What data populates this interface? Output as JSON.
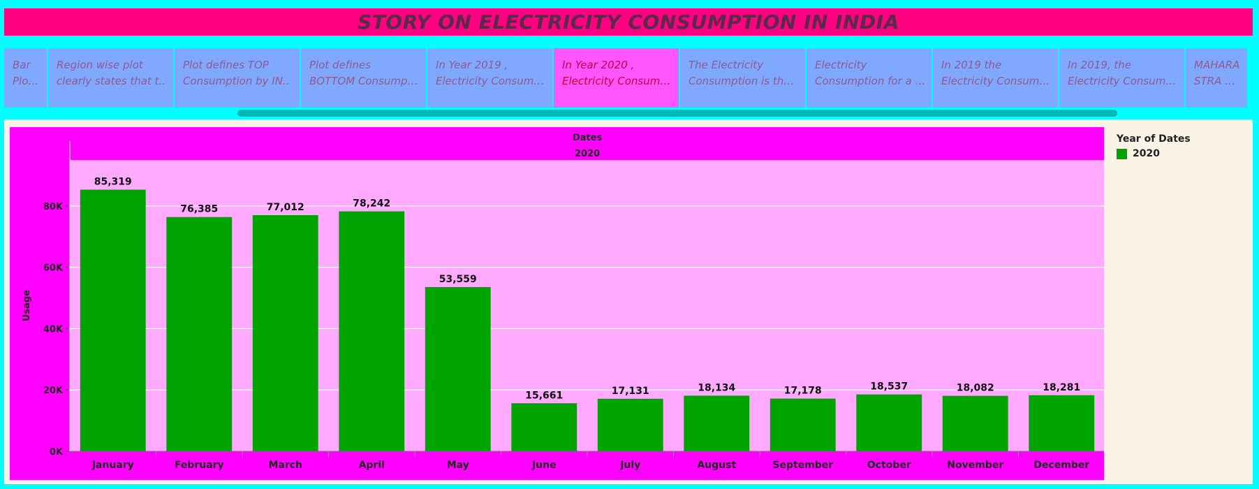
{
  "title": "STORY ON ELECTRICITY CONSUMPTION IN INDIA",
  "story_points": [
    {
      "line1": "Bar",
      "line2": "Plot f..",
      "active": false
    },
    {
      "line1": "Region wise plot",
      "line2": "clearly states that t..",
      "active": false
    },
    {
      "line1": "Plot defines TOP",
      "line2": "Consumption by IN..",
      "active": false
    },
    {
      "line1": "Plot defines",
      "line2": "BOTTOM Consumpti..",
      "active": false
    },
    {
      "line1": "In Year 2019 ,",
      "line2": "Electricity Consump..",
      "active": false
    },
    {
      "line1": "In Year 2020 ,",
      "line2": "Electricity Consump..",
      "active": true
    },
    {
      "line1": "The Electricity",
      "line2": "Consumption is the ..",
      "active": false
    },
    {
      "line1": "Electricity",
      "line2": "Consumption for a p..",
      "active": false
    },
    {
      "line1": "In 2019 the",
      "line2": "Electricity Consump..",
      "active": false
    },
    {
      "line1": "In 2019, the",
      "line2": "Electricity Consump..",
      "active": false
    },
    {
      "line1": "MAHARA",
      "line2": "STRA ha..",
      "active": false
    }
  ],
  "legend": {
    "title": "Year of Dates",
    "entries": [
      {
        "label": "2020",
        "color": "#00a400"
      }
    ]
  },
  "chart_data": {
    "type": "bar",
    "header_title": "Dates",
    "header_subtitle": "2020",
    "ylabel": "Usage",
    "ylim": [
      0,
      95000
    ],
    "yticks": [
      0,
      20000,
      40000,
      60000,
      80000
    ],
    "ytick_labels": [
      "0K",
      "20K",
      "40K",
      "60K",
      "80K"
    ],
    "grid": true,
    "legend_position": "right",
    "categories": [
      "January",
      "February",
      "March",
      "April",
      "May",
      "June",
      "July",
      "August",
      "September",
      "October",
      "November",
      "December"
    ],
    "series": [
      {
        "name": "2020",
        "color": "#00a400",
        "values": [
          85319,
          76385,
          77012,
          78242,
          53559,
          15661,
          17131,
          18134,
          17178,
          18537,
          18082,
          18281
        ],
        "value_labels": [
          "85,319",
          "76,385",
          "77,012",
          "78,242",
          "53,559",
          "15,661",
          "17,131",
          "18,134",
          "17,178",
          "18,537",
          "18,082",
          "18,281"
        ]
      }
    ],
    "colors": {
      "frame": "#ff00ff",
      "plot_background": "#ffaaff",
      "gridline": "#ffffff"
    }
  }
}
